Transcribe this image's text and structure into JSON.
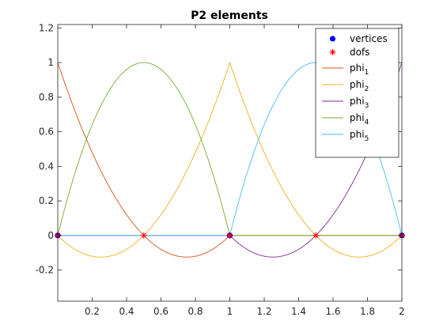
{
  "chart_data": {
    "type": "line",
    "title": "P2 elements",
    "xlabel": "",
    "ylabel": "",
    "xlim": [
      0,
      2
    ],
    "ylim": [
      -0.38,
      1.22
    ],
    "xticks": [
      0.2,
      0.4,
      0.6,
      0.8,
      1,
      1.2,
      1.4,
      1.6,
      1.8,
      2
    ],
    "xtick_labels": [
      "0.2",
      "0.4",
      "0.6",
      "0.8",
      "1",
      "1.2",
      "1.4",
      "1.6",
      "1.8",
      "2"
    ],
    "yticks": [
      -0.2,
      0,
      0.2,
      0.4,
      0.6,
      0.8,
      1,
      1.2
    ],
    "ytick_labels": [
      "-0.2",
      "0",
      "0.2",
      "0.4",
      "0.6",
      "0.8",
      "1",
      "1.2"
    ],
    "grid": false,
    "legend_position": "top-right",
    "markers": [
      {
        "name": "vertices",
        "symbol": "filled-circle",
        "color": "#0000ff",
        "x": [
          0,
          1,
          2
        ],
        "y": [
          0,
          0,
          0
        ]
      },
      {
        "name": "dofs",
        "symbol": "asterisk",
        "color": "#ff0000",
        "x": [
          0,
          0.5,
          1,
          1.5,
          2
        ],
        "y": [
          0,
          0,
          0,
          0,
          0
        ]
      }
    ],
    "series": [
      {
        "name": "phi",
        "sub": "1",
        "color": "#d95319",
        "kind": "vertex",
        "node": 0
      },
      {
        "name": "phi",
        "sub": "2",
        "color": "#edb120",
        "kind": "vertex",
        "node": 1
      },
      {
        "name": "phi",
        "sub": "3",
        "color": "#7e2f8e",
        "kind": "vertex",
        "node": 2
      },
      {
        "name": "phi",
        "sub": "4",
        "color": "#77ac30",
        "kind": "bubble",
        "node": 0.5
      },
      {
        "name": "phi",
        "sub": "5",
        "color": "#4dbeee",
        "kind": "bubble",
        "node": 1.5
      }
    ]
  }
}
